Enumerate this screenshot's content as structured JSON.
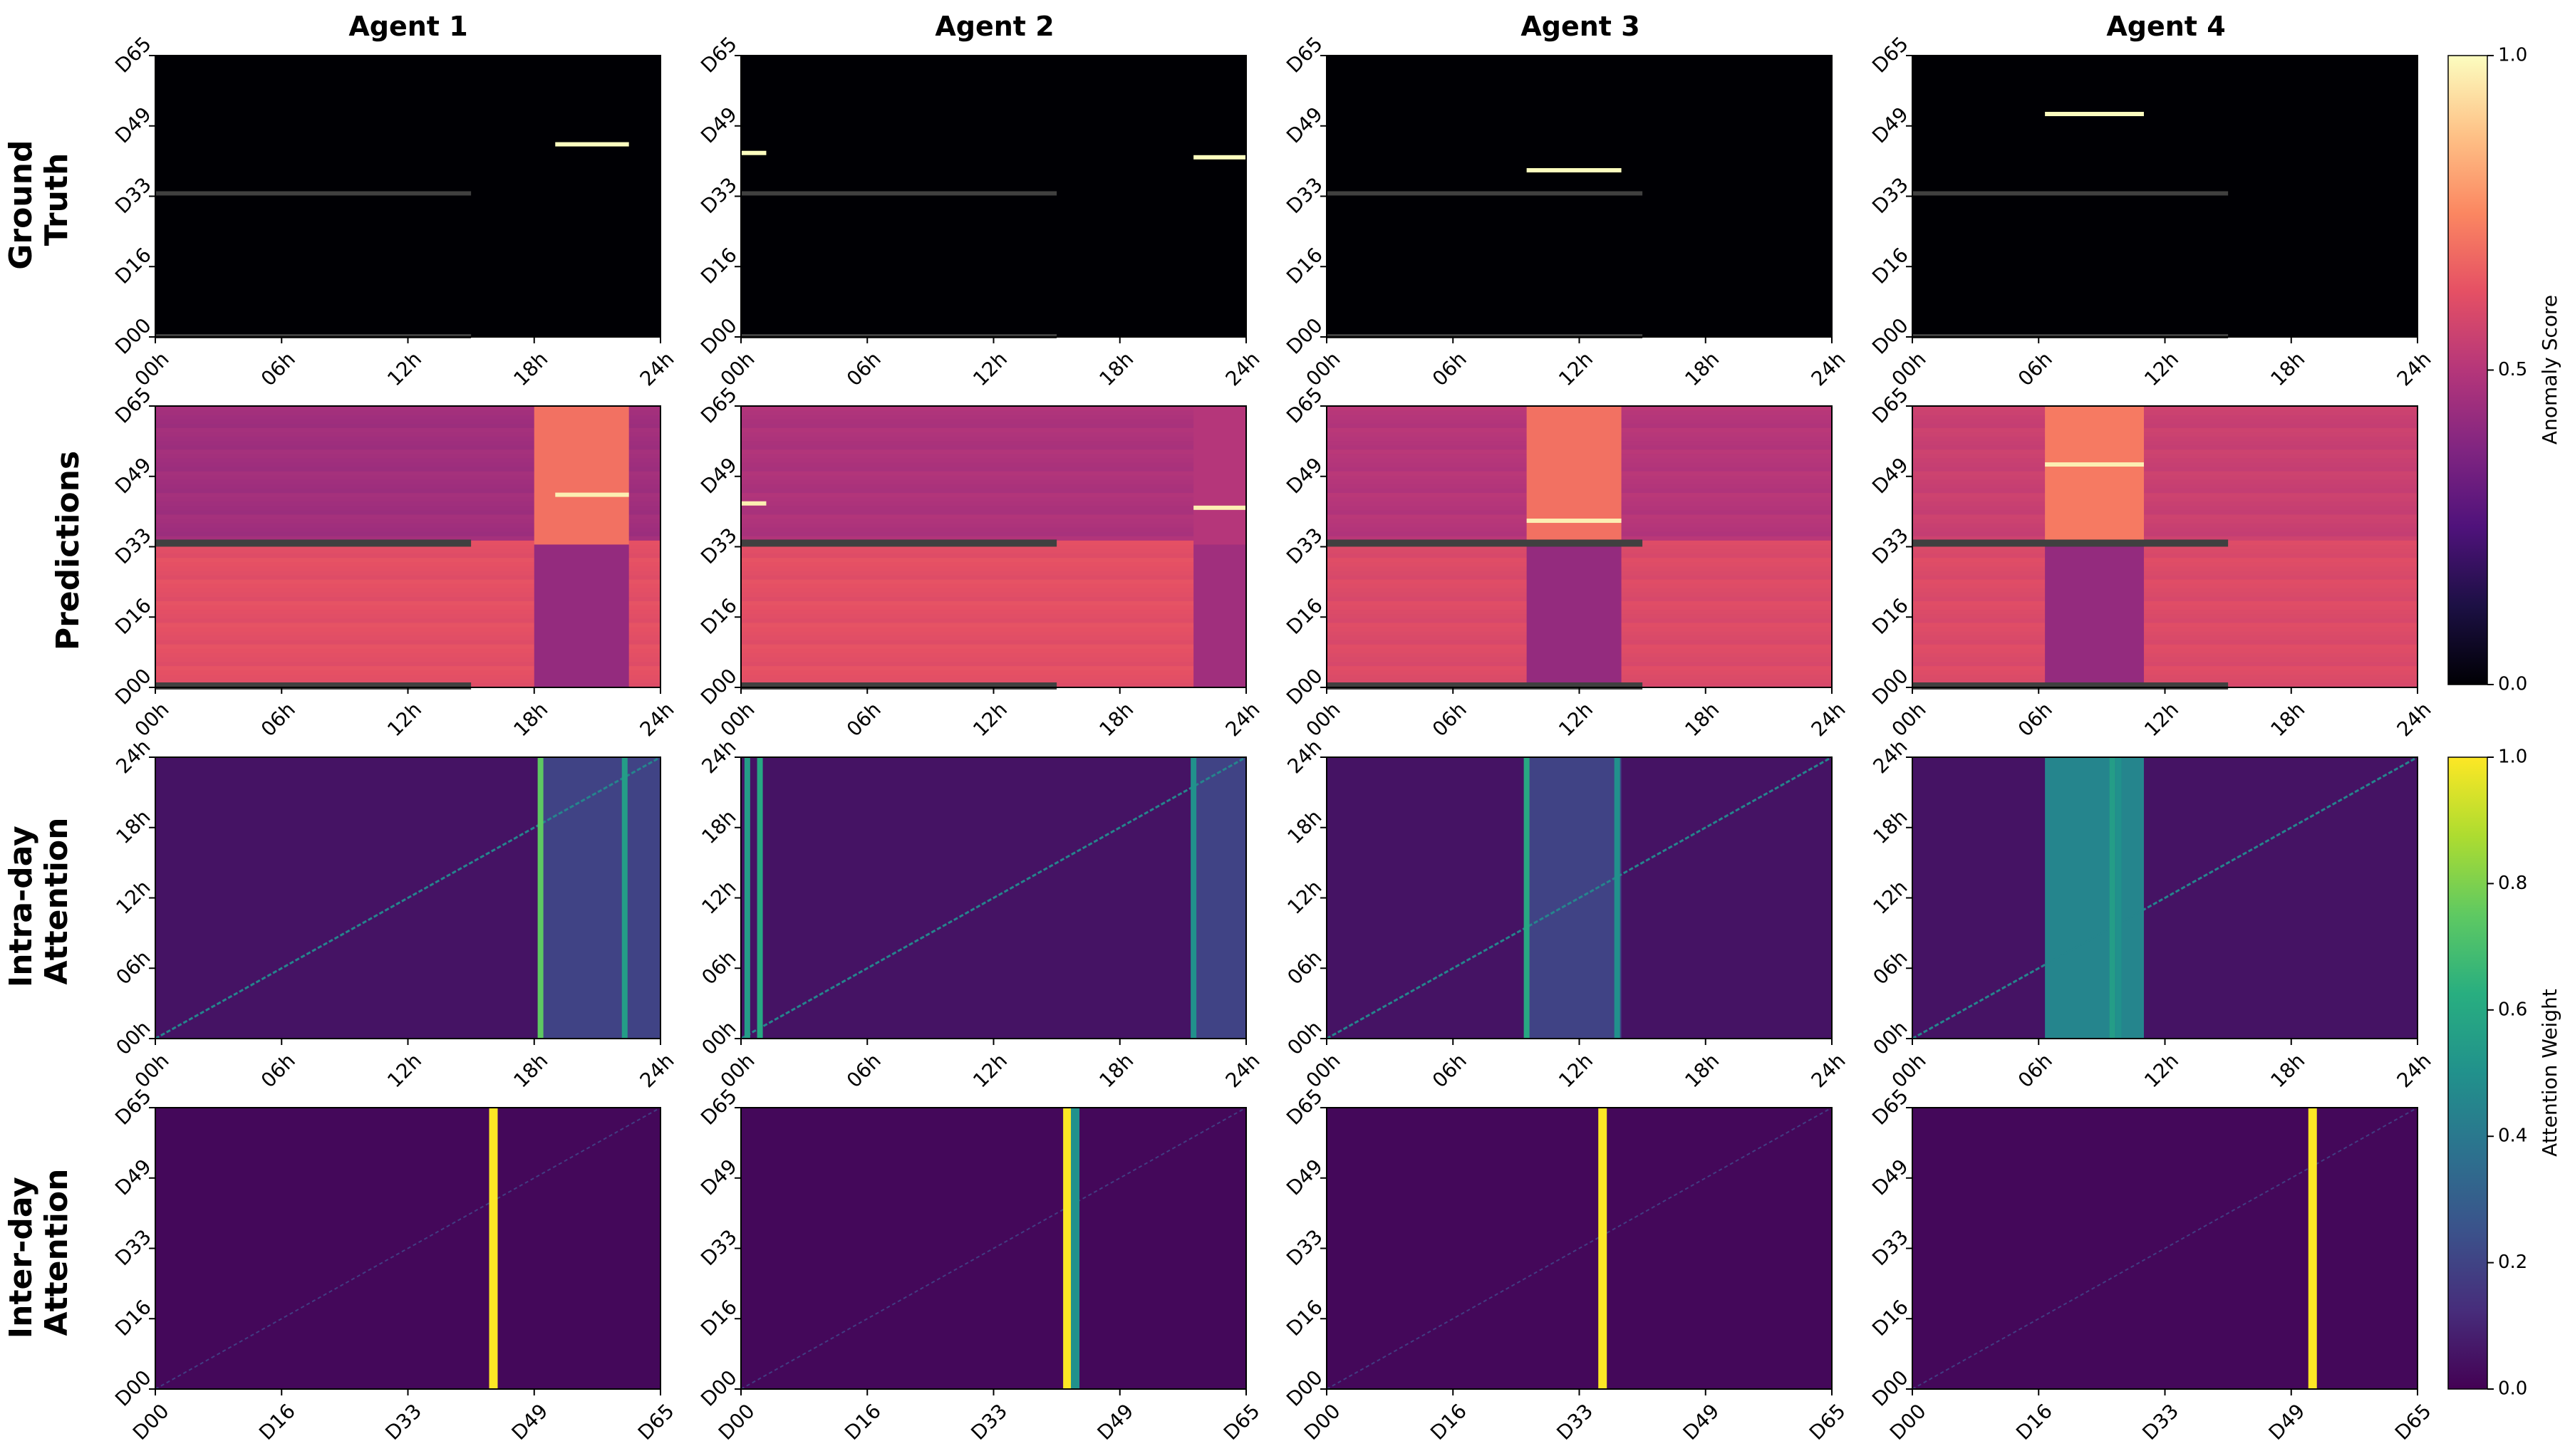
{
  "chart_data": {
    "type": "heatmap",
    "columns": [
      "Agent 1",
      "Agent 2",
      "Agent 3",
      "Agent 4"
    ],
    "row_labels": [
      [
        "Ground",
        "Truth"
      ],
      [
        "Predictions"
      ],
      [
        "Intra-day",
        "Attention"
      ],
      [
        "Inter-day",
        "Attention"
      ]
    ],
    "day_ticks": [
      "D00",
      "D16",
      "D33",
      "D49",
      "D65"
    ],
    "hour_ticks": [
      "00h",
      "06h",
      "12h",
      "18h",
      "24h"
    ],
    "colorbars": [
      {
        "label": "Anomaly Score",
        "colormap": "magma",
        "ticks": [
          "0.0",
          "0.5",
          "1.0"
        ],
        "range": [
          0,
          1
        ]
      },
      {
        "label": "Attention Weight",
        "colormap": "viridis",
        "ticks": [
          "0.0",
          "0.2",
          "0.4",
          "0.6",
          "0.8",
          "1.0"
        ],
        "range": [
          0,
          1
        ]
      }
    ],
    "agents": [
      {
        "name": "Agent 1",
        "gt_anomalies": [
          {
            "day": 44.5,
            "hour_start": 19.0,
            "hour_end": 22.5,
            "score": 1.0
          }
        ],
        "missing_rows": [
          {
            "day": 0,
            "hour_end": 15.0
          },
          {
            "day": 33,
            "hour_end": 15.0
          }
        ],
        "pred_background": 0.62,
        "pred_upper_band": 0.45,
        "pred_highlight_hours": [
          18.0,
          22.5
        ],
        "pred_highlight_upper": 0.7,
        "pred_highlight_lower": 0.42,
        "intra_peaks": [
          {
            "hour": 18.3,
            "weight": 0.75
          },
          {
            "hour": 22.3,
            "weight": 0.55
          }
        ],
        "intra_tint_hours": [
          18.3,
          24.0
        ],
        "inter_peaks": [
          {
            "day": 43.5,
            "weight": 1.0
          }
        ]
      },
      {
        "name": "Agent 2",
        "gt_anomalies": [
          {
            "day": 42.5,
            "hour_start": 0.0,
            "hour_end": 1.2,
            "score": 1.0
          },
          {
            "day": 41.5,
            "hour_start": 21.5,
            "hour_end": 24.0,
            "score": 1.0
          }
        ],
        "missing_rows": [
          {
            "day": 0,
            "hour_end": 15.0
          },
          {
            "day": 33,
            "hour_end": 15.0
          }
        ],
        "pred_background": 0.62,
        "pred_upper_band": 0.48,
        "pred_highlight_hours": [
          21.5,
          24.0
        ],
        "pred_highlight_upper": 0.5,
        "pred_highlight_lower": 0.45,
        "intra_peaks": [
          {
            "hour": 0.3,
            "weight": 0.55
          },
          {
            "hour": 0.9,
            "weight": 0.6
          },
          {
            "hour": 21.5,
            "weight": 0.5
          }
        ],
        "intra_tint_hours": [
          21.5,
          24.0
        ],
        "inter_peaks": [
          {
            "day": 42.0,
            "weight": 1.0
          },
          {
            "day": 43.0,
            "weight": 0.5
          }
        ]
      },
      {
        "name": "Agent 3",
        "gt_anomalies": [
          {
            "day": 38.5,
            "hour_start": 9.5,
            "hour_end": 14.0,
            "score": 1.0
          }
        ],
        "missing_rows": [
          {
            "day": 0,
            "hour_end": 15.0
          },
          {
            "day": 33,
            "hour_end": 15.0
          }
        ],
        "pred_background": 0.6,
        "pred_upper_band": 0.5,
        "pred_highlight_hours": [
          9.5,
          14.0
        ],
        "pred_highlight_upper": 0.7,
        "pred_highlight_lower": 0.42,
        "intra_peaks": [
          {
            "hour": 9.5,
            "weight": 0.6
          },
          {
            "hour": 13.8,
            "weight": 0.5
          }
        ],
        "intra_tint_hours": [
          9.5,
          14.0
        ],
        "inter_peaks": [
          {
            "day": 35.5,
            "weight": 1.0
          }
        ]
      },
      {
        "name": "Agent 4",
        "gt_anomalies": [
          {
            "day": 51.5,
            "hour_start": 6.3,
            "hour_end": 11.0,
            "score": 1.0
          }
        ],
        "missing_rows": [
          {
            "day": 0,
            "hour_end": 15.0
          },
          {
            "day": 33,
            "hour_end": 15.0
          }
        ],
        "pred_background": 0.6,
        "pred_upper_band": 0.55,
        "pred_highlight_hours": [
          6.3,
          11.0
        ],
        "pred_highlight_upper": 0.72,
        "pred_highlight_lower": 0.42,
        "intra_peaks": [
          {
            "hour": 9.5,
            "weight": 0.55
          },
          {
            "hour": 9.8,
            "weight": 0.5
          }
        ],
        "intra_tint_hours": [
          6.3,
          11.0
        ],
        "inter_peaks": [
          {
            "day": 51.5,
            "weight": 1.0
          }
        ]
      }
    ]
  }
}
